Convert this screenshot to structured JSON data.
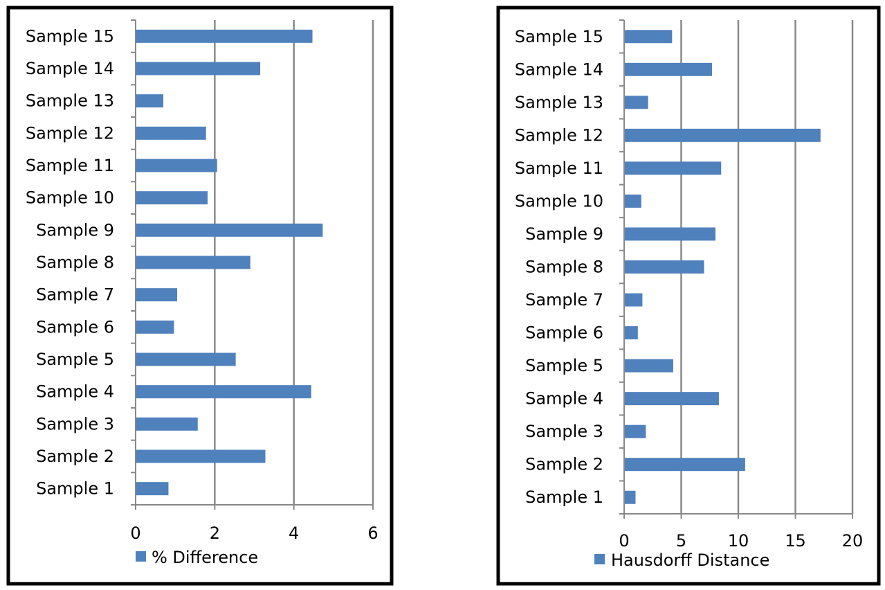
{
  "colors": {
    "bar": "#4F81BD",
    "grid": "#888888",
    "frame": "#000000"
  },
  "chart_data": [
    {
      "type": "bar",
      "orientation": "horizontal",
      "title": "",
      "xlabel": "",
      "ylabel": "",
      "categories": [
        "Sample 1",
        "Sample 2",
        "Sample 3",
        "Sample 4",
        "Sample 5",
        "Sample 6",
        "Sample 7",
        "Sample 8",
        "Sample 9",
        "Sample 10",
        "Sample 11",
        "Sample 12",
        "Sample 13",
        "Sample 14",
        "Sample 15"
      ],
      "series": [
        {
          "name": "% Difference",
          "values": [
            0.83,
            3.28,
            1.57,
            4.44,
            2.53,
            0.97,
            1.05,
            2.9,
            4.73,
            1.82,
            2.06,
            1.78,
            0.7,
            3.15,
            4.47
          ]
        }
      ],
      "xlim": [
        0,
        6
      ],
      "x_ticks": [
        "0",
        "2",
        "4",
        "6"
      ],
      "x_tick_values": [
        0,
        2,
        4,
        6
      ],
      "grid": true,
      "legend": "bottom"
    },
    {
      "type": "bar",
      "orientation": "horizontal",
      "title": "",
      "xlabel": "",
      "ylabel": "",
      "categories": [
        "Sample 1",
        "Sample 2",
        "Sample 3",
        "Sample 4",
        "Sample 5",
        "Sample 6",
        "Sample 7",
        "Sample 8",
        "Sample 9",
        "Sample 10",
        "Sample 11",
        "Sample 12",
        "Sample 13",
        "Sample 14",
        "Sample 15"
      ],
      "series": [
        {
          "name": "Hausdorff Distance",
          "values": [
            1.0,
            10.6,
            1.9,
            8.3,
            4.3,
            1.2,
            1.6,
            7.0,
            8.0,
            1.5,
            8.5,
            17.2,
            2.1,
            7.7,
            4.2
          ]
        }
      ],
      "xlim": [
        0,
        20
      ],
      "x_ticks": [
        "0",
        "5",
        "10",
        "15",
        "20"
      ],
      "x_tick_values": [
        0,
        5,
        10,
        15,
        20
      ],
      "grid": true,
      "legend": "bottom"
    }
  ]
}
